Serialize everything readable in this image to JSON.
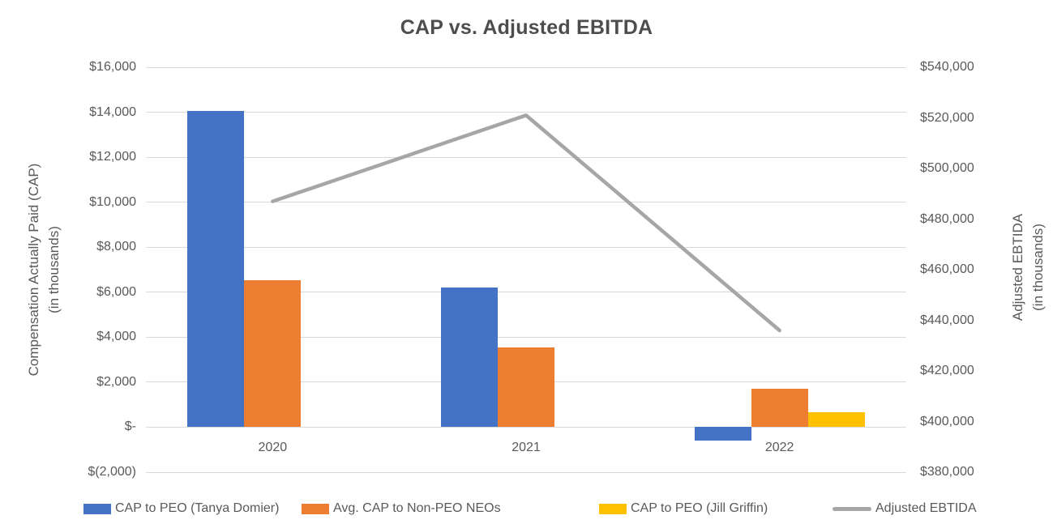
{
  "title": "CAP vs. Adjusted EBITDA",
  "left_axis": {
    "title_line1": "Compensation Actually Paid (CAP)",
    "title_line2": "(in thousands)",
    "tick_labels": [
      "$16,000",
      "$14,000",
      "$12,000",
      "$10,000",
      "$8,000",
      "$6,000",
      "$4,000",
      "$2,000",
      "$-",
      "$(2,000)"
    ],
    "tick_values": [
      16000,
      14000,
      12000,
      10000,
      8000,
      6000,
      4000,
      2000,
      0,
      -2000
    ],
    "range": [
      -2000,
      16000
    ]
  },
  "right_axis": {
    "title_line1": "Adjusted EBTIDA",
    "title_line2": "(in thousands)",
    "tick_labels": [
      "$540,000",
      "$520,000",
      "$500,000",
      "$480,000",
      "$460,000",
      "$440,000",
      "$420,000",
      "$400,000",
      "$380,000"
    ],
    "tick_values": [
      540000,
      520000,
      500000,
      480000,
      460000,
      440000,
      420000,
      400000,
      380000
    ],
    "range": [
      380000,
      540000
    ]
  },
  "chart_data": {
    "type": "bar",
    "subtype": "grouped-bars-with-line-dual-axis",
    "title": "CAP vs. Adjusted EBITDA",
    "categories": [
      "2020",
      "2021",
      "2022"
    ],
    "series": [
      {
        "name": "CAP to PEO (Tanya Domier)",
        "type": "bar",
        "axis": "left",
        "color": "#4472C4",
        "values": [
          14050,
          6200,
          -600
        ]
      },
      {
        "name": "Avg. CAP to Non-PEO NEOs",
        "type": "bar",
        "axis": "left",
        "color": "#ED7D31",
        "values": [
          6550,
          3550,
          1700
        ]
      },
      {
        "name": "CAP to PEO (Jill Griffin)",
        "type": "bar",
        "axis": "left",
        "color": "#FFC000",
        "values": [
          null,
          null,
          670
        ]
      },
      {
        "name": "Adjusted EBTIDA",
        "type": "line",
        "axis": "right",
        "color": "#A6A6A6",
        "values": [
          487000,
          521000,
          436000
        ]
      }
    ],
    "left_ylim": [
      -2000,
      16000
    ],
    "right_ylim": [
      380000,
      540000
    ],
    "grid": "horizontal",
    "legend_position": "bottom",
    "gridline_color": "#d9d9d9",
    "line_stroke_width": 4.5
  },
  "legend": {
    "items": [
      {
        "label": "CAP to PEO (Tanya Domier)",
        "color": "#4472C4",
        "marker": "rect"
      },
      {
        "label": "Avg. CAP to Non-PEO NEOs",
        "color": "#ED7D31",
        "marker": "rect"
      },
      {
        "label": "CAP to PEO (Jill Griffin)",
        "color": "#FFC000",
        "marker": "rect"
      },
      {
        "label": "Adjusted EBTIDA",
        "color": "#A6A6A6",
        "marker": "line"
      }
    ]
  }
}
